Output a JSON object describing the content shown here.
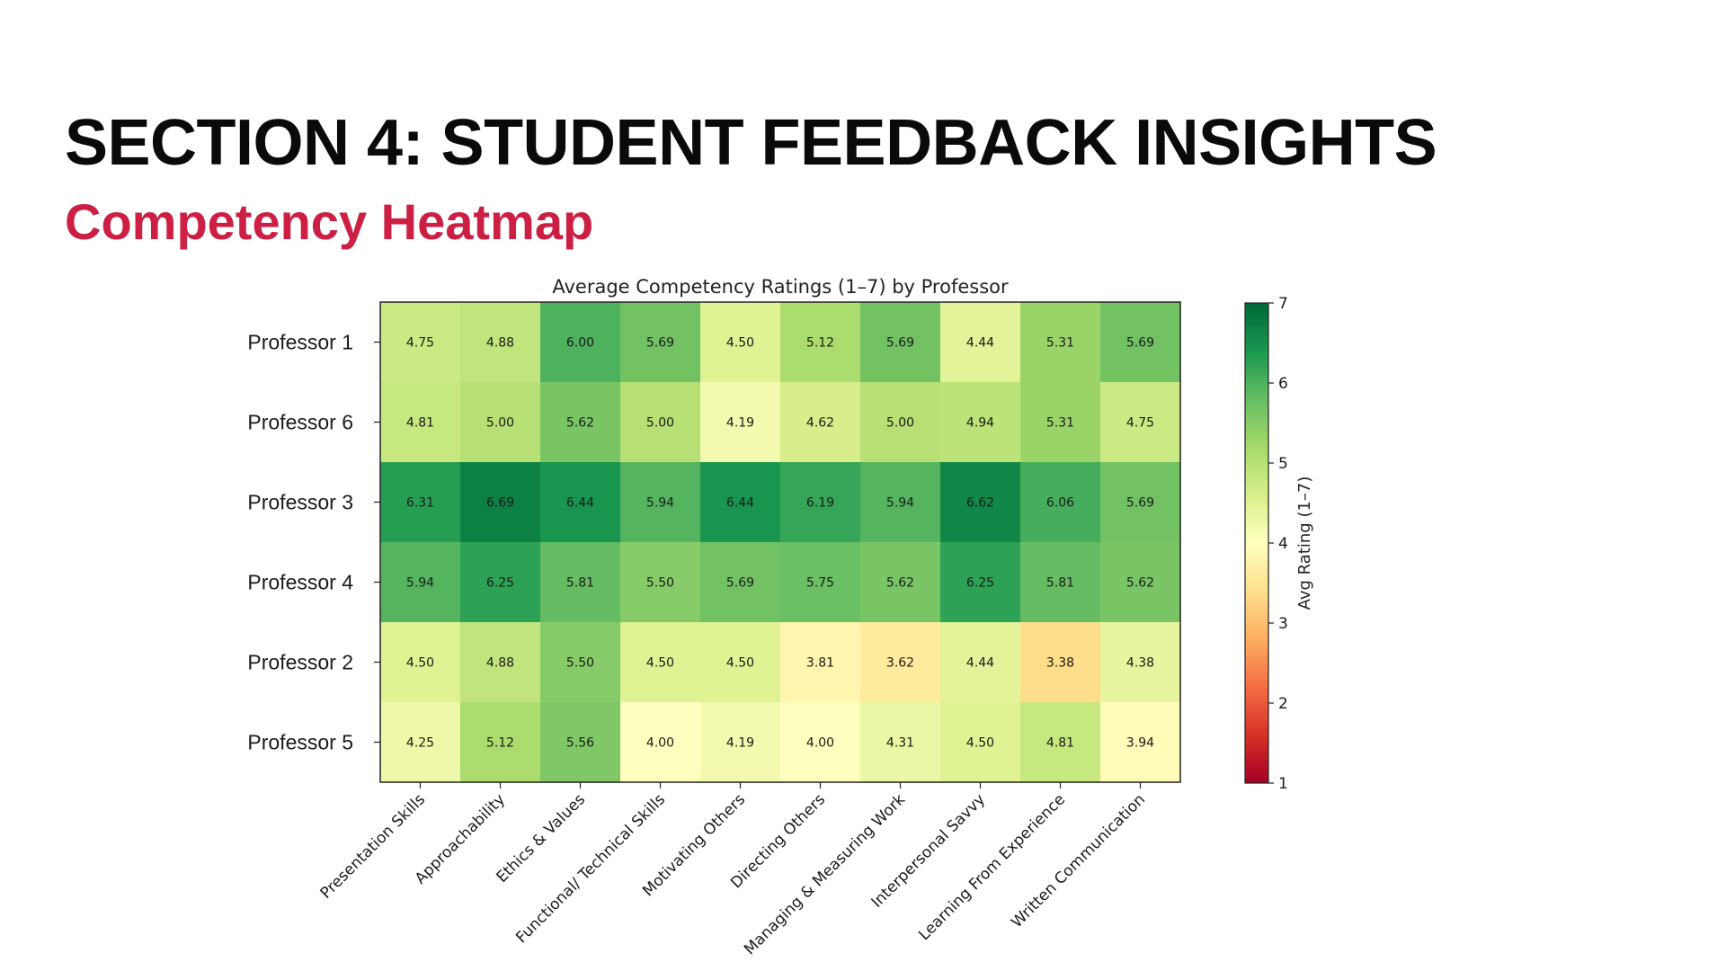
{
  "slide": {
    "title": "SECTION 4: STUDENT FEEDBACK INSIGHTS",
    "subtitle": "Competency Heatmap"
  },
  "chart_data": {
    "type": "heatmap",
    "title": "Average Competency Ratings (1–7) by Professor",
    "rows": [
      "Professor 1",
      "Professor 6",
      "Professor 3",
      "Professor 4",
      "Professor 2",
      "Professor 5"
    ],
    "columns": [
      "Presentation Skills",
      "Approachability",
      "Ethics & Values",
      "Functional/ Technical Skills",
      "Motivating Others",
      "Directing Others",
      "Managing & Measuring Work",
      "Interpersonal Savvy",
      "Learning From Experience",
      "Written Communication"
    ],
    "values": [
      [
        4.75,
        4.88,
        6.0,
        5.69,
        4.5,
        5.12,
        5.69,
        4.44,
        5.31,
        5.69
      ],
      [
        4.81,
        5.0,
        5.62,
        5.0,
        4.19,
        4.62,
        5.0,
        4.94,
        5.31,
        4.75
      ],
      [
        6.31,
        6.69,
        6.44,
        5.94,
        6.44,
        6.19,
        5.94,
        6.62,
        6.06,
        5.69
      ],
      [
        5.94,
        6.25,
        5.81,
        5.5,
        5.69,
        5.75,
        5.62,
        6.25,
        5.81,
        5.62
      ],
      [
        4.5,
        4.88,
        5.5,
        4.5,
        4.5,
        3.81,
        3.62,
        4.44,
        3.38,
        4.38
      ],
      [
        4.25,
        5.12,
        5.56,
        4.0,
        4.19,
        4.0,
        4.31,
        4.5,
        4.81,
        3.94
      ]
    ],
    "colorbar": {
      "label": "Avg Rating (1–7)",
      "range": [
        1,
        7
      ],
      "ticks": [
        1,
        2,
        3,
        4,
        5,
        6,
        7
      ],
      "colormap": "RdYlGn"
    }
  }
}
